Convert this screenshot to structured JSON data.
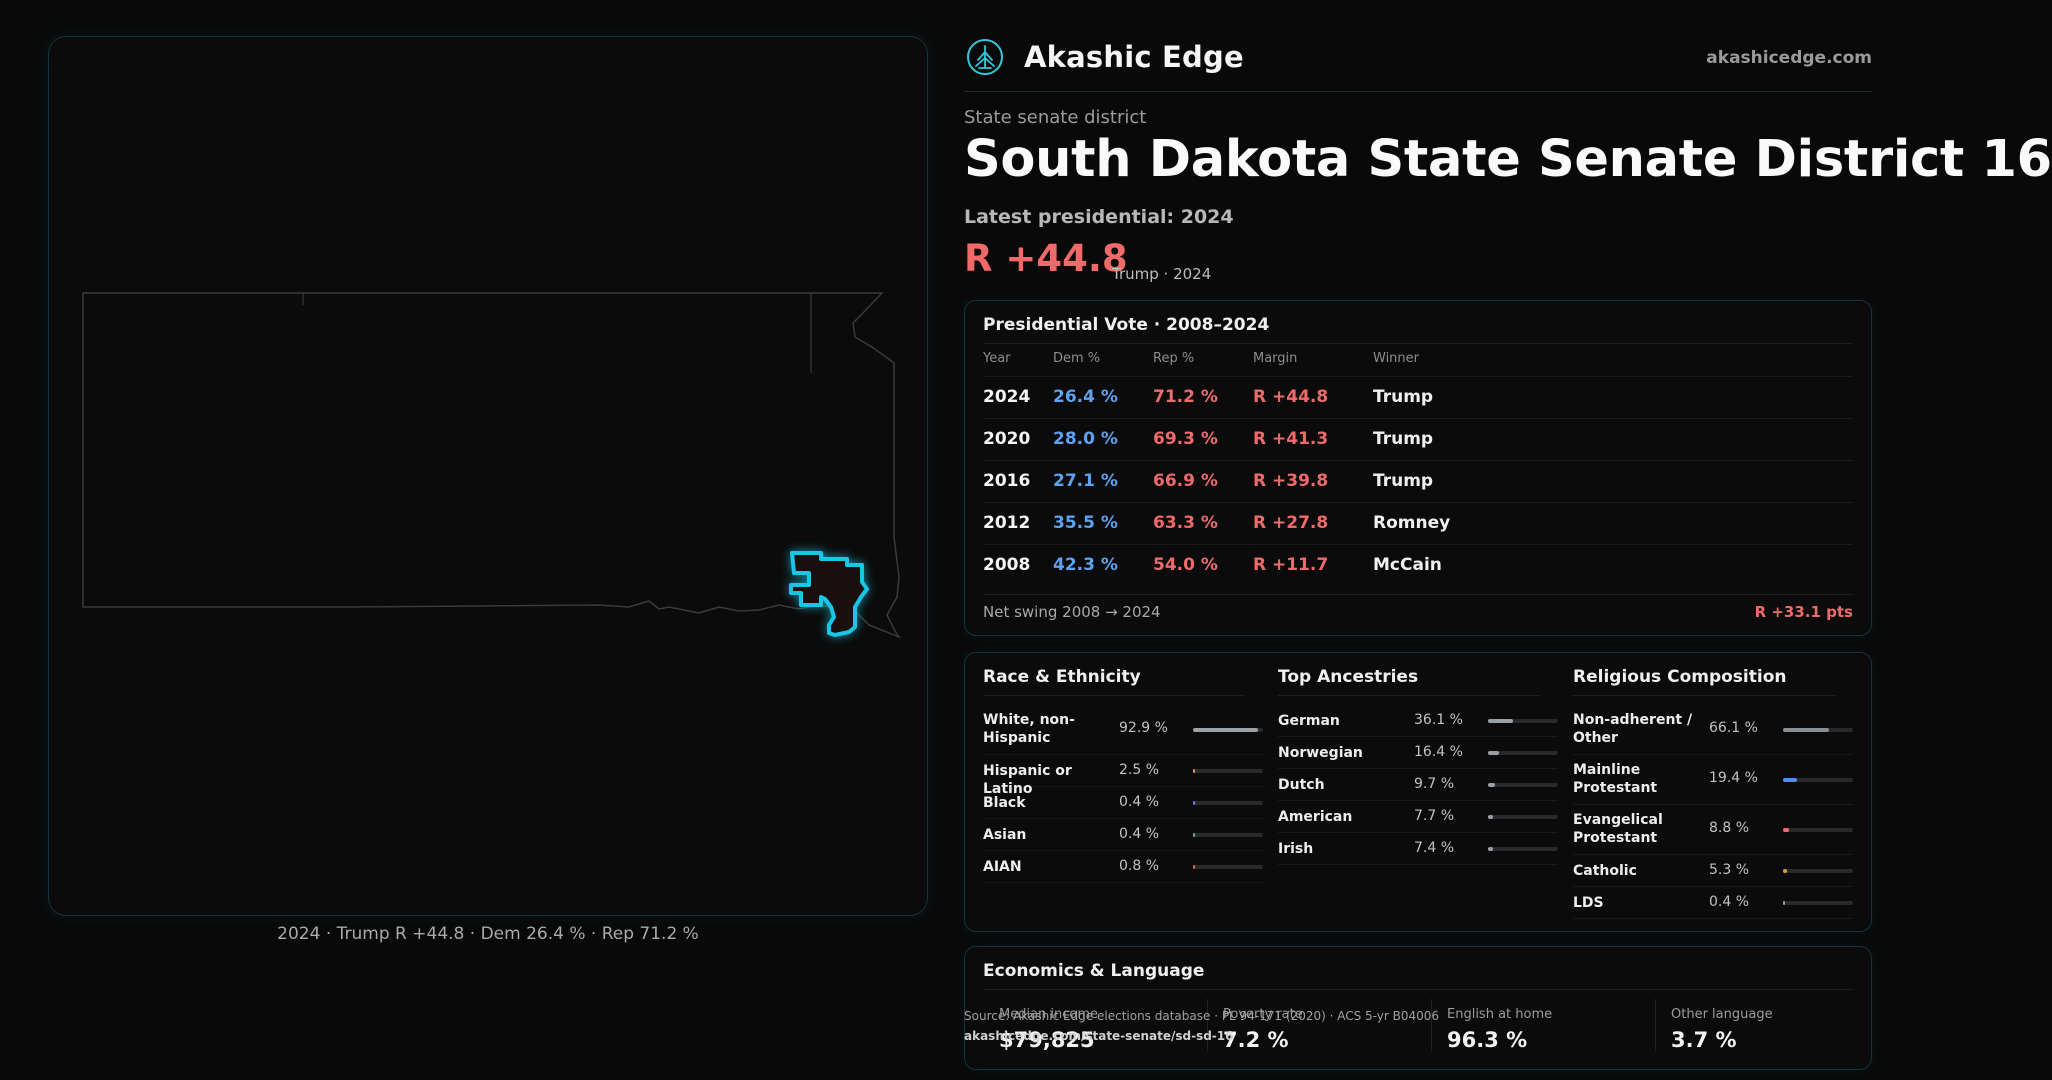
{
  "brand": {
    "name": "Akashic Edge",
    "url": "akashicedge.com",
    "logo_icon": "akashic-tree-icon"
  },
  "header": {
    "kicker": "State senate district",
    "title": "South Dakota State Senate District 16",
    "latest_label": "Latest presidential: 2024",
    "margin": "R +44.8",
    "margin_sub": "Trump · 2024"
  },
  "map": {
    "caption": "2024 · Trump R +44.8 · Dem 26.4 % · Rep 71.2 %",
    "highlight_color": "#19c6e6"
  },
  "presidential": {
    "title": "Presidential Vote · 2008–2024",
    "columns": [
      "Year",
      "Dem %",
      "Rep %",
      "Margin",
      "Winner"
    ],
    "rows": [
      {
        "year": "2024",
        "dem": "26.4 %",
        "rep": "71.2 %",
        "margin": "R +44.8",
        "winner": "Trump"
      },
      {
        "year": "2020",
        "dem": "28.0 %",
        "rep": "69.3 %",
        "margin": "R +41.3",
        "winner": "Trump"
      },
      {
        "year": "2016",
        "dem": "27.1 %",
        "rep": "66.9 %",
        "margin": "R +39.8",
        "winner": "Trump"
      },
      {
        "year": "2012",
        "dem": "35.5 %",
        "rep": "63.3 %",
        "margin": "R +27.8",
        "winner": "Romney"
      },
      {
        "year": "2008",
        "dem": "42.3 %",
        "rep": "54.0 %",
        "margin": "R +11.7",
        "winner": "McCain"
      }
    ],
    "swing_label": "Net swing 2008 → 2024",
    "swing_value": "R +33.1 pts"
  },
  "race": {
    "title": "Race & Ethnicity",
    "items": [
      {
        "label": "White, non-Hispanic",
        "value": "92.9 %",
        "pct": 92.9,
        "color": "#9aa0a6",
        "tall": true
      },
      {
        "label": "Hispanic or Latino",
        "value": "2.5 %",
        "pct": 2.5,
        "color": "#e0a030",
        "tall": false
      },
      {
        "label": "Black",
        "value": "0.4 %",
        "pct": 0.4,
        "color": "#6a7ae0",
        "tall": false
      },
      {
        "label": "Asian",
        "value": "0.4 %",
        "pct": 0.4,
        "color": "#3fb48a",
        "tall": false
      },
      {
        "label": "AIAN",
        "value": "0.8 %",
        "pct": 0.8,
        "color": "#d06a3a",
        "tall": false
      }
    ]
  },
  "ancestry": {
    "title": "Top Ancestries",
    "items": [
      {
        "label": "German",
        "value": "36.1 %",
        "pct": 36.1,
        "color": "#9aa0a6",
        "tall": false
      },
      {
        "label": "Norwegian",
        "value": "16.4 %",
        "pct": 16.4,
        "color": "#9aa0a6",
        "tall": false
      },
      {
        "label": "Dutch",
        "value": "9.7 %",
        "pct": 9.7,
        "color": "#9aa0a6",
        "tall": false
      },
      {
        "label": "American",
        "value": "7.7 %",
        "pct": 7.7,
        "color": "#9aa0a6",
        "tall": false
      },
      {
        "label": "Irish",
        "value": "7.4 %",
        "pct": 7.4,
        "color": "#9aa0a6",
        "tall": false
      }
    ]
  },
  "religion": {
    "title": "Religious Composition",
    "items": [
      {
        "label": "Non-adherent / Other",
        "value": "66.1 %",
        "pct": 66.1,
        "color": "#8a8f95",
        "tall": true
      },
      {
        "label": "Mainline Protestant",
        "value": "19.4 %",
        "pct": 19.4,
        "color": "#4f8ef0",
        "tall": true
      },
      {
        "label": "Evangelical Protestant",
        "value": "8.8 %",
        "pct": 8.8,
        "color": "#f06a6a",
        "tall": true
      },
      {
        "label": "Catholic",
        "value": "5.3 %",
        "pct": 5.3,
        "color": "#e0a030",
        "tall": false
      },
      {
        "label": "LDS",
        "value": "0.4 %",
        "pct": 0.4,
        "color": "#9aa0a6",
        "tall": false
      }
    ]
  },
  "economics": {
    "title": "Economics & Language",
    "cells": [
      {
        "label": "Median income",
        "value": "$79,825"
      },
      {
        "label": "Poverty rate",
        "value": "7.2 %"
      },
      {
        "label": "English at home",
        "value": "96.3 %"
      },
      {
        "label": "Other language",
        "value": "3.7 %"
      }
    ]
  },
  "source": {
    "text": "Source: Akashic Edge elections database · PL 94-171 (2020) · ACS 5-yr B04006",
    "url": "akashicedge.com/state-senate/sd-sd-16"
  }
}
